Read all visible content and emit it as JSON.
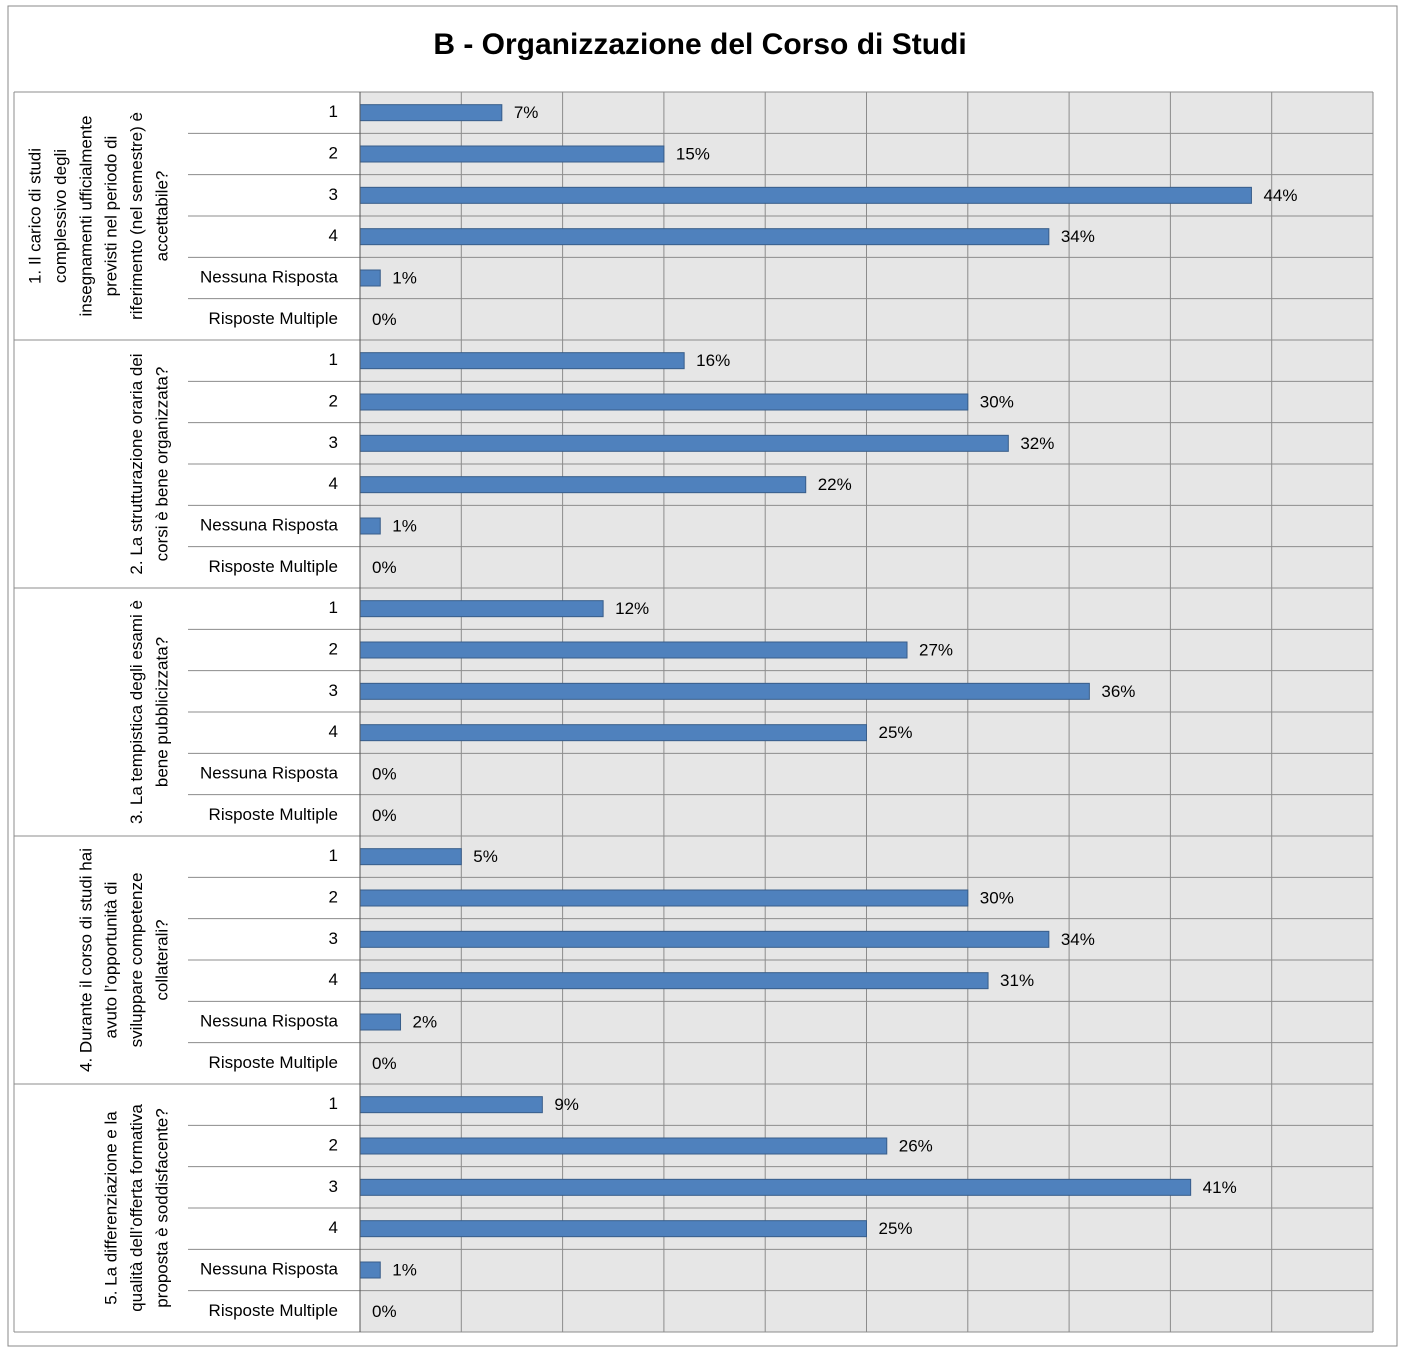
{
  "chart_data": {
    "type": "bar",
    "title": "B - Organizzazione del  Corso di  Studi",
    "color": "#4f81bd",
    "xlim": [
      0,
      50
    ],
    "xticks": [
      0,
      5,
      10,
      15,
      20,
      25,
      30,
      35,
      40,
      45,
      50
    ],
    "grid": true,
    "groups": [
      {
        "label": [
          "1. Il carico di studi",
          "complessivo degli",
          "insegnamenti ufficialmente",
          "previsti nel  periodo di",
          "riferimento (nel semestre) è",
          "accettabile?"
        ],
        "categories": [
          "1",
          "2",
          "3",
          "4",
          "Nessuna Risposta",
          "Risposte Multiple"
        ],
        "values": [
          7,
          15,
          44,
          34,
          1,
          0
        ],
        "value_labels": [
          "7%",
          "15%",
          "44%",
          "34%",
          "1%",
          "0%"
        ]
      },
      {
        "label": [
          "2. La strutturazione oraria dei",
          "corsi è bene organizzata?"
        ],
        "categories": [
          "1",
          "2",
          "3",
          "4",
          "Nessuna Risposta",
          "Risposte Multiple"
        ],
        "values": [
          16,
          30,
          32,
          22,
          1,
          0
        ],
        "value_labels": [
          "16%",
          "30%",
          "32%",
          "22%",
          "1%",
          "0%"
        ]
      },
      {
        "label": [
          "3. La tempistica  degli esami è",
          "bene pubblicizzata?"
        ],
        "categories": [
          "1",
          "2",
          "3",
          "4",
          "Nessuna Risposta",
          "Risposte Multiple"
        ],
        "values": [
          12,
          27,
          36,
          25,
          0,
          0
        ],
        "value_labels": [
          "12%",
          "27%",
          "36%",
          "25%",
          "0%",
          "0%"
        ]
      },
      {
        "label": [
          "4. Durante il corso di studi hai",
          "avuto l’opportunità di",
          "sviluppare competenze",
          "collaterali?"
        ],
        "categories": [
          "1",
          "2",
          "3",
          "4",
          "Nessuna Risposta",
          "Risposte Multiple"
        ],
        "values": [
          5,
          30,
          34,
          31,
          2,
          0
        ],
        "value_labels": [
          "5%",
          "30%",
          "34%",
          "31%",
          "2%",
          "0%"
        ]
      },
      {
        "label": [
          "5. La differenziazione e la",
          "qualità dell’offerta formativa",
          "proposta  è soddisfacente?"
        ],
        "categories": [
          "1",
          "2",
          "3",
          "4",
          "Nessuna Risposta",
          "Risposte Multiple"
        ],
        "values": [
          9,
          26,
          41,
          25,
          1,
          0
        ],
        "value_labels": [
          "9%",
          "26%",
          "41%",
          "25%",
          "1%",
          "0%"
        ]
      }
    ]
  }
}
